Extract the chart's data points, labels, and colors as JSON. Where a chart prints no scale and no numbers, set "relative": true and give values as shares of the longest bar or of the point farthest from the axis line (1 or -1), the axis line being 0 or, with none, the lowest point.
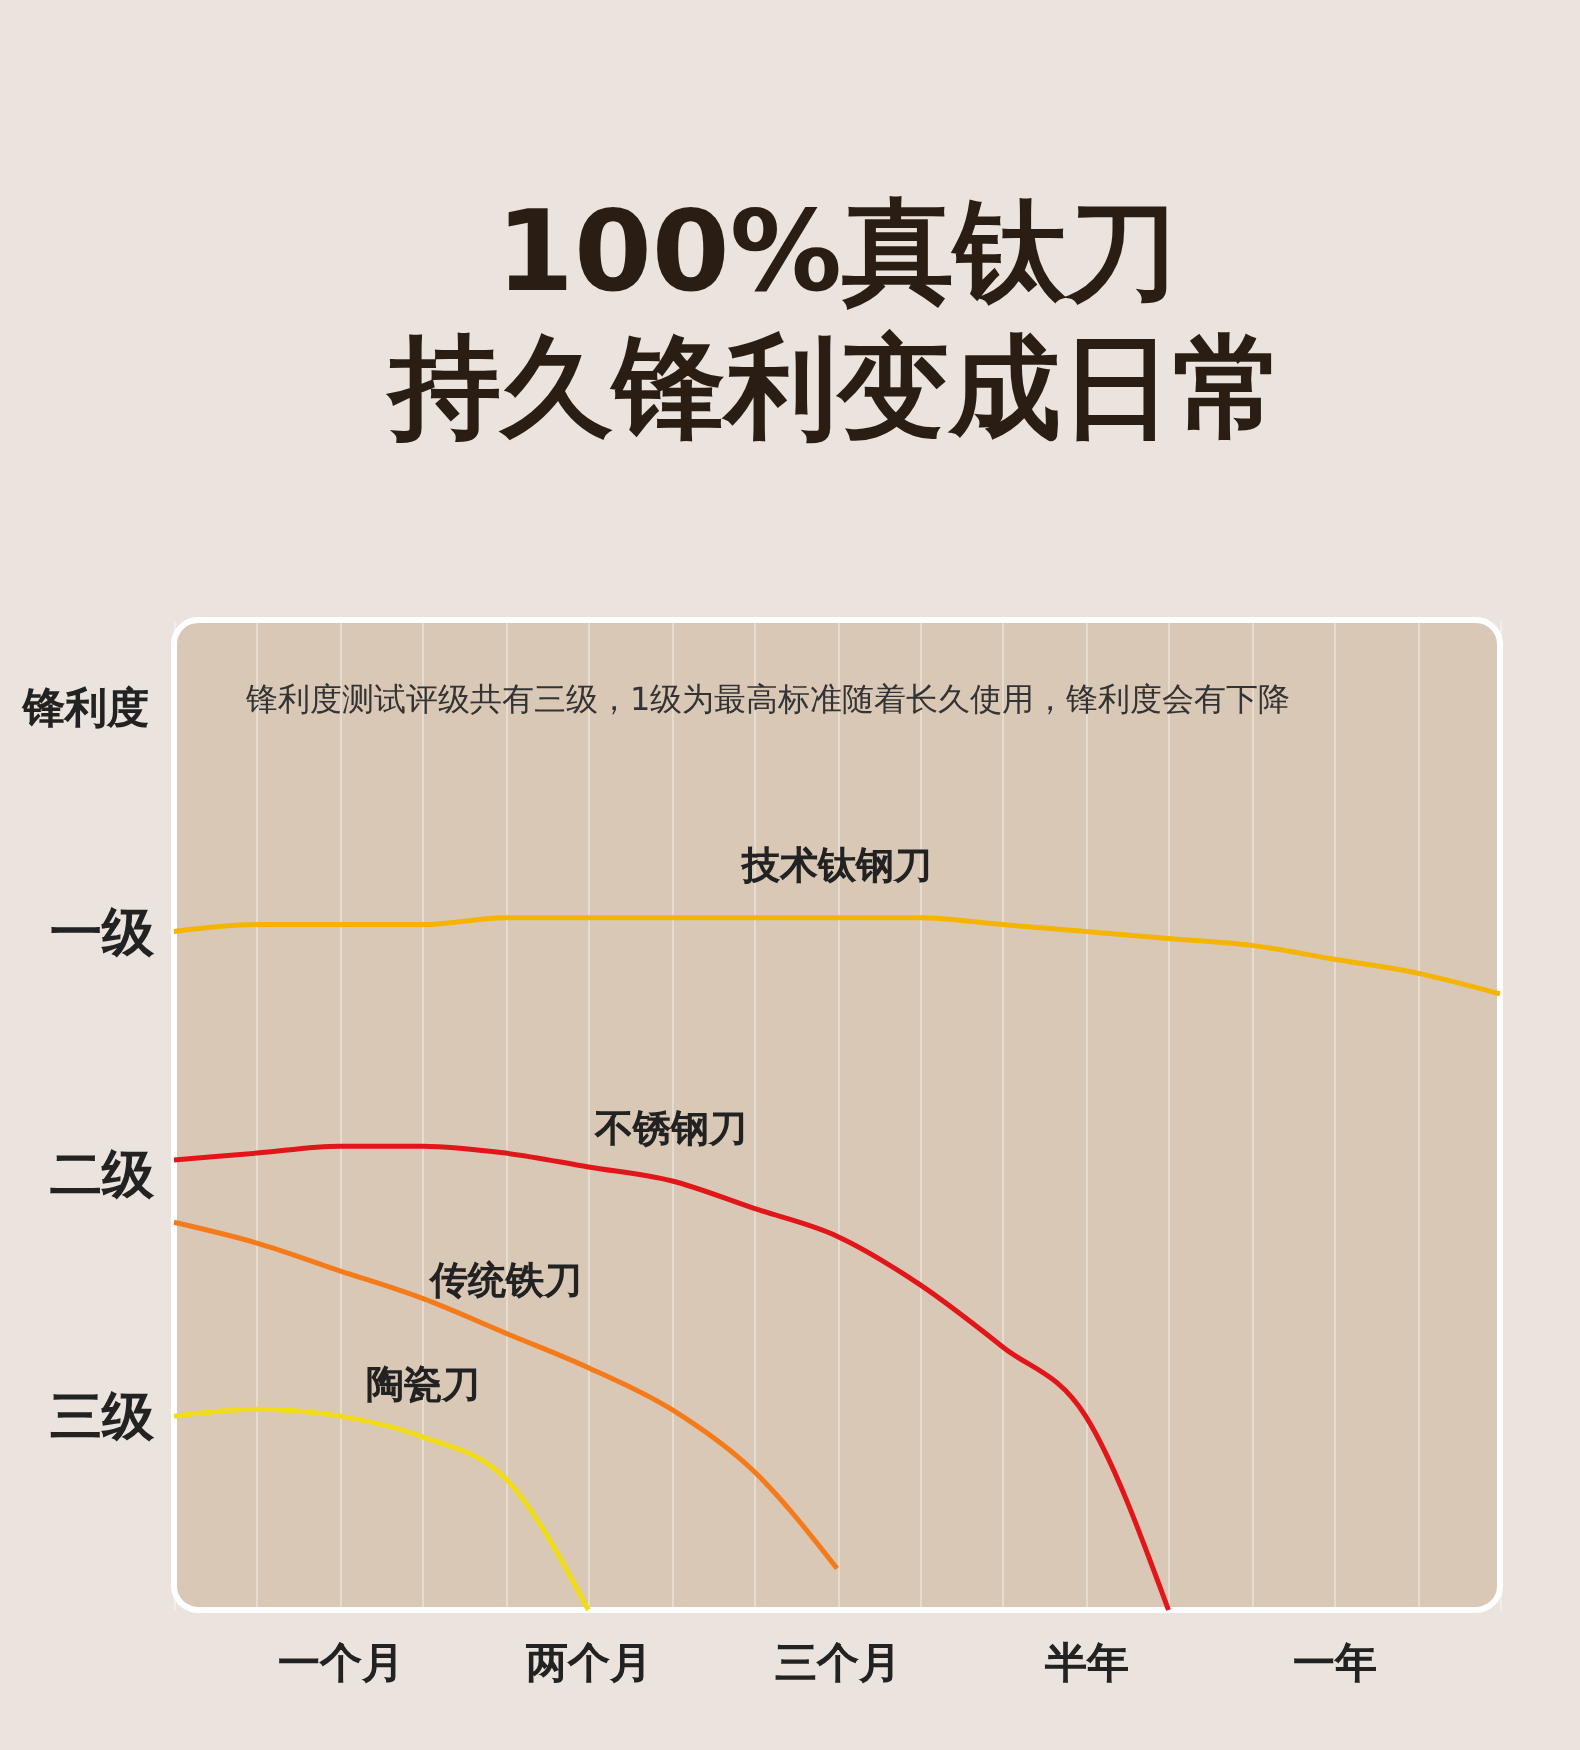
{
  "chart_data": {
    "type": "line",
    "title": "100%真钛刀",
    "subtitle": "持久锋利变成日常",
    "ylabel": "锋利度",
    "relative": true,
    "annotations": [
      "锋利度测试评级共有三级，1级为最高标准随着长久使用，锋利度会有下降",
      "一级",
      "二级",
      "三级"
    ],
    "categories": [
      null,
      null,
      "一个月",
      null,
      null,
      "两个月",
      null,
      null,
      "三个月",
      null,
      null,
      "半年",
      null,
      null,
      "一年",
      null,
      null
    ],
    "grid": "x",
    "marker": "none",
    "line_style": "solid",
    "series": [
      {
        "name": "技术钛钢刀",
        "color": "#f5b400",
        "values": [
          0.98,
          0.99,
          0.99,
          0.99,
          1,
          1,
          1,
          1,
          1,
          1,
          0.99,
          0.98,
          0.97,
          0.96,
          0.94,
          0.92,
          0.89
        ]
      },
      {
        "name": "不锈钢刀",
        "color": "#e0161b",
        "values": [
          0.65,
          0.66,
          0.67,
          0.67,
          0.66,
          0.64,
          0.62,
          0.58,
          0.54,
          0.47,
          0.38,
          0.28,
          0,
          null,
          null,
          null,
          null
        ]
      },
      {
        "name": "传统铁刀",
        "color": "#f57a1a",
        "values": [
          0.56,
          0.53,
          0.49,
          0.45,
          0.4,
          0.35,
          0.29,
          0.2,
          0.06,
          null,
          null,
          null,
          null,
          null,
          null,
          null,
          null
        ]
      },
      {
        "name": "陶瓷刀",
        "color": "#f0dc1a",
        "values": [
          0.28,
          0.29,
          0.28,
          0.25,
          0.19,
          0,
          null,
          null,
          null,
          null,
          null,
          null,
          null,
          null,
          null,
          null,
          null
        ]
      }
    ]
  }
}
